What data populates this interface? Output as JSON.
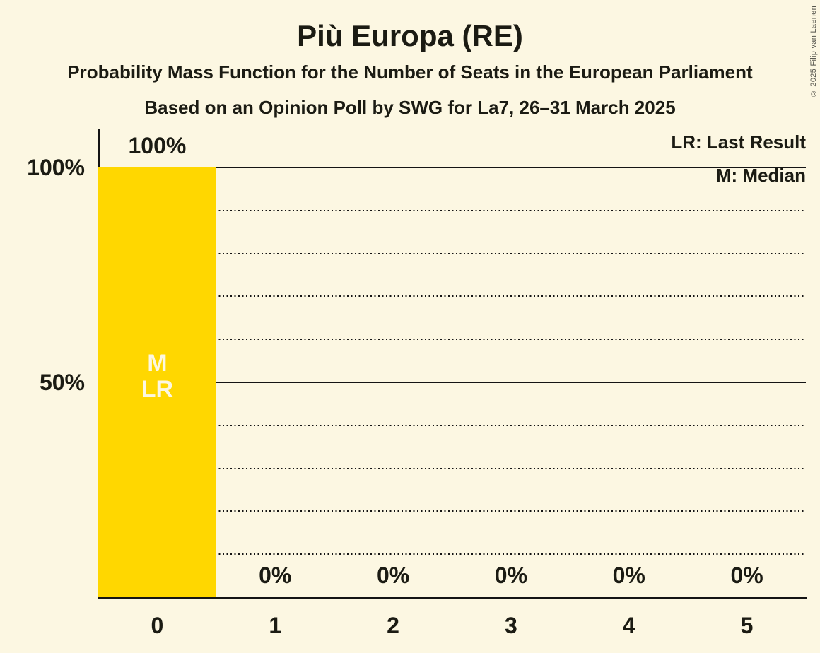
{
  "header": {
    "title": "Più Europa (RE)",
    "subtitle": "Probability Mass Function for the Number of Seats in the European Parliament",
    "poll_details": "Based on an Opinion Poll by SWG for La7, 26–31 March 2025"
  },
  "legend": {
    "last_result": "LR: Last Result",
    "median": "M: Median"
  },
  "copyright": "© 2025 Filip van Laenen",
  "chart_data": {
    "type": "bar",
    "title": "Più Europa (RE)",
    "categories": [
      "0",
      "1",
      "2",
      "3",
      "4",
      "5"
    ],
    "values": [
      100,
      0,
      0,
      0,
      0,
      0
    ],
    "value_labels": [
      "100%",
      "0%",
      "0%",
      "0%",
      "0%",
      "0%"
    ],
    "ylim": [
      0,
      100
    ],
    "y_ticks": [
      {
        "label": "100%",
        "value": 100
      },
      {
        "label": "50%",
        "value": 50
      }
    ],
    "gridlines_pct": [
      10,
      20,
      30,
      40,
      50,
      60,
      70,
      80,
      90,
      100
    ],
    "solid_gridlines_pct": [
      50,
      100
    ],
    "grid": "horizontal dotted lines every 10%, solid at 50% and 100%",
    "legend_position": "top-right",
    "annotation": {
      "bar_index": 0,
      "lines": [
        "M",
        "LR"
      ],
      "meaning": "Median and Last Result at 0 seats"
    },
    "colors": {
      "bar": "#FFD700",
      "background": "#FCF7E2",
      "text": "#1B1B13",
      "bar_annotation_text": "#FCF7E2"
    }
  }
}
